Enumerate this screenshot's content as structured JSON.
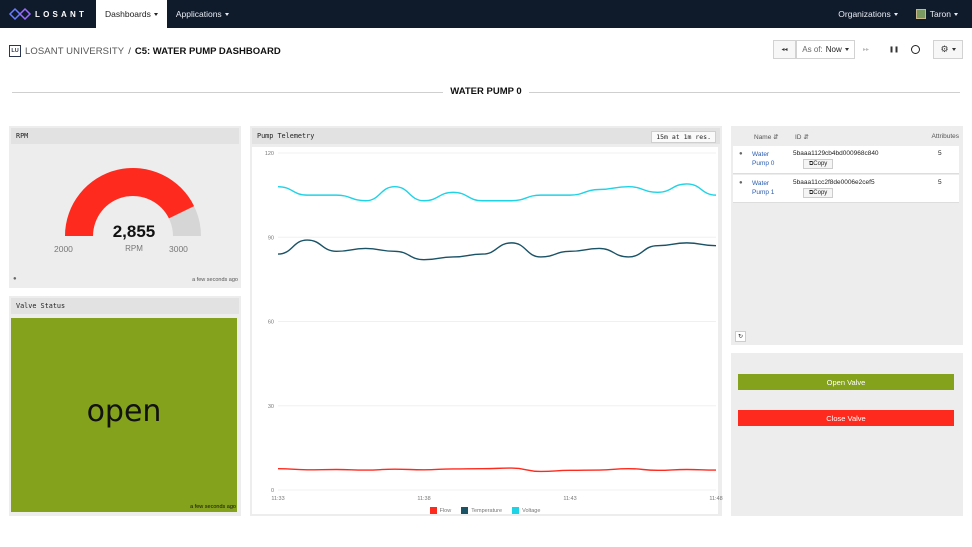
{
  "nav": {
    "logo_text": "LOSANT",
    "dashboards_label": "Dashboards",
    "applications_label": "Applications",
    "organizations_label": "Organizations",
    "user_name": "Taron"
  },
  "breadcrumb": {
    "badge": "LU",
    "org": "LOSANT UNIVERSITY",
    "separator": "/",
    "dashboard": "C5: WATER PUMP DASHBOARD"
  },
  "time_controls": {
    "rewind": "◂◂",
    "as_of_label": "As of:",
    "as_of_value": "Now",
    "fast_forward": "▸▸",
    "pause": "❚❚",
    "gear": "⚙"
  },
  "section_title": "WATER PUMP 0",
  "rpm_block": {
    "title": "RPM",
    "value": 2855,
    "value_display": "2,855",
    "unit": "RPM",
    "min": 2000,
    "max": 3000,
    "min_label": "2000",
    "max_label": "3000",
    "timestamp": "a few seconds ago",
    "fill_color": "#ff2a1e",
    "track_color": "#d6d6d6"
  },
  "valve_block": {
    "title": "Valve Status",
    "status": "open",
    "timestamp": "a few seconds ago",
    "color": "#84a21b"
  },
  "telemetry_block": {
    "title": "Pump Telemetry",
    "resolution": "15m at 1m res."
  },
  "chart_data": {
    "type": "line",
    "title": "",
    "xlabel": "",
    "ylabel": "",
    "ylim": [
      0,
      120
    ],
    "yticks": [
      "0",
      "30",
      "60",
      "90",
      "120"
    ],
    "xticks": [
      "11:33",
      "11:38",
      "11:43",
      "11:48"
    ],
    "x": [
      "11:33",
      "11:34",
      "11:35",
      "11:36",
      "11:37",
      "11:38",
      "11:39",
      "11:40",
      "11:41",
      "11:42",
      "11:43",
      "11:44",
      "11:45",
      "11:46",
      "11:47",
      "11:48"
    ],
    "legend_position": "bottom",
    "series": [
      {
        "name": "Flow",
        "color": "#ff2a1e",
        "values": [
          7.6,
          7.2,
          7.3,
          7.1,
          7.4,
          7.2,
          7.5,
          7.6,
          7.8,
          6.6,
          7.0,
          7.1,
          7.6,
          7.0,
          7.3,
          7.1
        ]
      },
      {
        "name": "Temperature",
        "color": "#1a5266",
        "values": [
          84,
          89,
          85,
          86,
          85,
          82,
          83,
          84,
          88,
          83,
          85,
          86,
          83,
          87,
          88,
          87
        ]
      },
      {
        "name": "Voltage",
        "color": "#1fd3e6",
        "values": [
          108,
          105,
          105,
          103,
          108,
          103,
          106,
          103,
          103,
          105,
          105,
          107,
          108,
          106,
          109,
          105
        ]
      }
    ]
  },
  "device_list": {
    "col_name": "Name",
    "col_id": "ID",
    "col_attributes": "Attributes",
    "copy_label": "Copy",
    "devices": [
      {
        "name": "Water Pump 0",
        "id": "5baaa1129cb4bd000968c840",
        "attributes": "5"
      },
      {
        "name": "Water Pump 1",
        "id": "5baaa11cc2f8de0006e2cef5",
        "attributes": "5"
      }
    ]
  },
  "valve_controls": {
    "open_label": "Open Valve",
    "close_label": "Close Valve",
    "open_color": "#84a21b",
    "close_color": "#ff2a1e"
  }
}
